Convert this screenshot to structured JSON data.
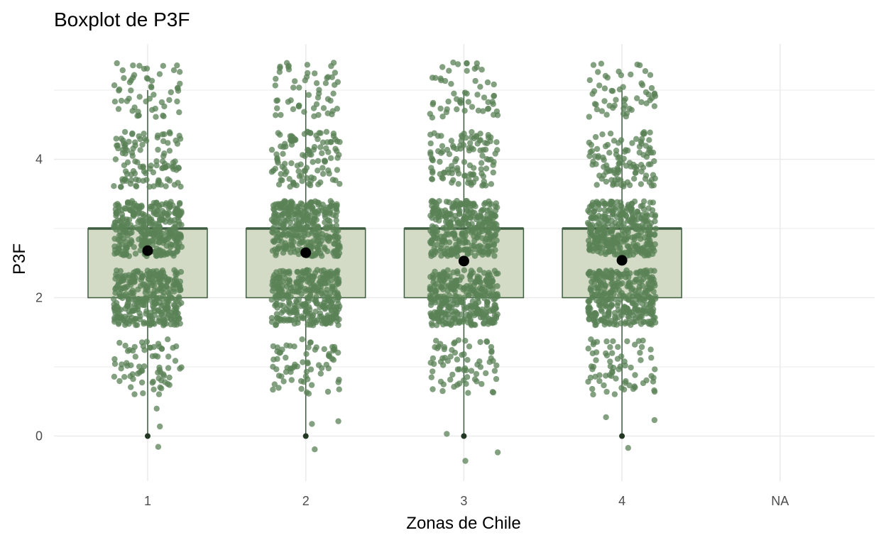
{
  "chart_data": {
    "type": "boxplot",
    "title": "Boxplot de P3F",
    "xlabel": "Zonas de Chile",
    "ylabel": "P3F",
    "categories": [
      "1",
      "2",
      "3",
      "4",
      "NA"
    ],
    "y_ticks": [
      "0",
      "2",
      "4"
    ],
    "ylim": [
      -0.6,
      5.6
    ],
    "grid": true,
    "legend": "none",
    "boxes": [
      {
        "category": "1",
        "q1": 2,
        "median": 3,
        "q3": 3,
        "whisker_low": 0,
        "whisker_high": 5,
        "mean": 2.68,
        "outliers": [
          0
        ]
      },
      {
        "category": "2",
        "q1": 2,
        "median": 3,
        "q3": 3,
        "whisker_low": 0,
        "whisker_high": 5,
        "mean": 2.65,
        "outliers": [
          0
        ]
      },
      {
        "category": "3",
        "q1": 2,
        "median": 3,
        "q3": 3,
        "whisker_low": 0,
        "whisker_high": 5,
        "mean": 2.53,
        "outliers": [
          0
        ]
      },
      {
        "category": "4",
        "q1": 2,
        "median": 3,
        "q3": 3,
        "whisker_low": 0,
        "whisker_high": 5,
        "mean": 2.54,
        "outliers": [
          0
        ]
      }
    ],
    "jittered_points": "dense jittered raw observations around the integer values 0-5 for each zone (1-4)"
  },
  "colors": {
    "box_fill": "#d3dbc6",
    "box_line": "#3d5c40",
    "points": "#5a8256",
    "mean_marker": "#000000",
    "grid": "#ebebeb",
    "tick_text": "#4d4d4d"
  }
}
